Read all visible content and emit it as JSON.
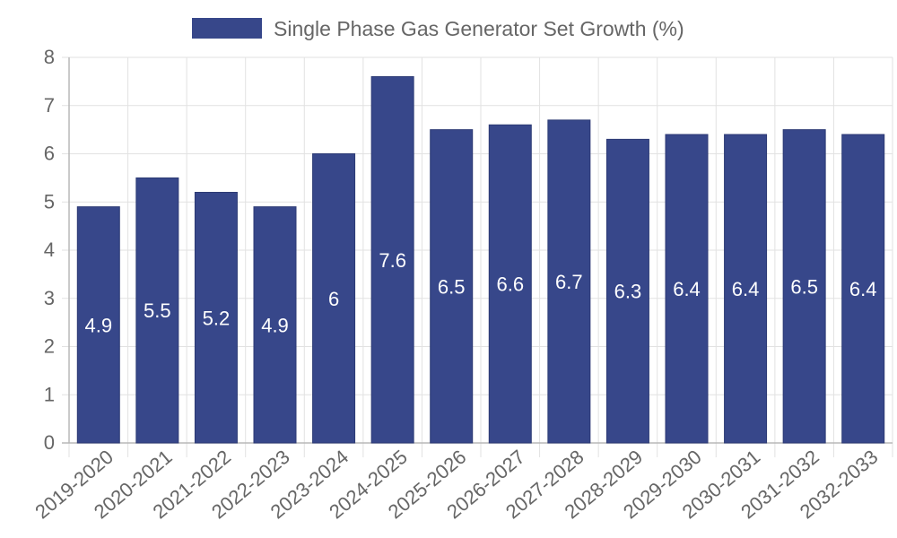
{
  "chart_data": {
    "type": "bar",
    "legend": {
      "label": "Single Phase Gas Generator Set Growth (%)",
      "placement": "top-center"
    },
    "series": [
      {
        "name": "Single Phase Gas Generator Set Growth (%)",
        "color": "#37478a",
        "values": [
          4.9,
          5.5,
          5.2,
          4.9,
          6,
          7.6,
          6.5,
          6.6,
          6.7,
          6.3,
          6.4,
          6.4,
          6.5,
          6.4
        ]
      }
    ],
    "categories": [
      "2019-2020",
      "2020-2021",
      "2021-2022",
      "2022-2023",
      "2023-2024",
      "2024-2025",
      "2025-2026",
      "2026-2027",
      "2027-2028",
      "2028-2029",
      "2029-2030",
      "2030-2031",
      "2031-2032",
      "2032-2033"
    ],
    "data_labels": [
      "4.9",
      "5.5",
      "5.2",
      "4.9",
      "6",
      "7.6",
      "6.5",
      "6.6",
      "6.7",
      "6.3",
      "6.4",
      "6.4",
      "6.5",
      "6.4"
    ],
    "y_ticks": [
      "0",
      "1",
      "2",
      "3",
      "4",
      "5",
      "6",
      "7",
      "8"
    ],
    "ylim": [
      0,
      8
    ],
    "grid": true,
    "xlabel": "",
    "ylabel": "",
    "title": ""
  }
}
